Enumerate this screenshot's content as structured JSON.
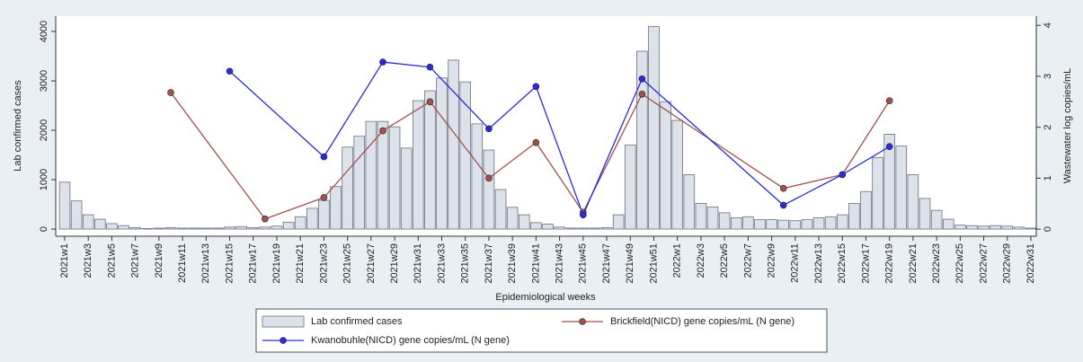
{
  "chart_data": {
    "type": "bar",
    "x_label": "Epidemiological weeks",
    "y_label": "Lab confirmed cases",
    "y2_label": "Wastewater log copies/mL",
    "categories": [
      "2021w1",
      null,
      "2021w3",
      null,
      "2021w5",
      null,
      "2021w7",
      null,
      "2021w9",
      null,
      "2021w11",
      null,
      "2021w13",
      null,
      "2021w15",
      null,
      "2021w17",
      null,
      "2021w19",
      null,
      "2021w21",
      null,
      "2021w23",
      null,
      "2021w25",
      null,
      "2021w27",
      null,
      "2021w29",
      null,
      "2021w31",
      null,
      "2021w33",
      null,
      "2021w35",
      null,
      "2021w37",
      null,
      "2021w39",
      null,
      "2021w41",
      null,
      "2021w43",
      null,
      "2021w45",
      null,
      "2021w47",
      null,
      "2021w49",
      null,
      "2021w51",
      null,
      "2022w1",
      null,
      "2022w3",
      null,
      "2022w5",
      null,
      "2022w7",
      null,
      "2022w9",
      null,
      "2022w11",
      null,
      "2022w13",
      null,
      "2022w15",
      null,
      "2022w17",
      null,
      "2022w19",
      null,
      "2022w21",
      null,
      "2022w23",
      null,
      "2022w25",
      null,
      "2022w27",
      null,
      "2022w29",
      null,
      "2022w31"
    ],
    "series": [
      {
        "name": "Lab confirmed cases",
        "type": "bar",
        "color": "#dce1ea",
        "values": [
          950,
          570,
          290,
          200,
          110,
          70,
          30,
          10,
          20,
          30,
          20,
          20,
          20,
          20,
          40,
          50,
          30,
          40,
          60,
          140,
          250,
          420,
          580,
          860,
          1660,
          1880,
          2180,
          2180,
          2070,
          1640,
          2600,
          2800,
          3060,
          3420,
          2980,
          2130,
          1600,
          800,
          440,
          290,
          130,
          100,
          40,
          20,
          20,
          20,
          30,
          290,
          1700,
          3600,
          4100,
          2580,
          2200,
          1100,
          520,
          450,
          330,
          230,
          250,
          190,
          190,
          180,
          170,
          190,
          230,
          250,
          290,
          520,
          760,
          1450,
          1920,
          1680,
          1100,
          620,
          380,
          200,
          80,
          70,
          60,
          70,
          60,
          40,
          20
        ]
      },
      {
        "name": "Brickfield(NICD) gene copies/mL (N gene)",
        "type": "line",
        "axis": "y2",
        "color": "#a0524f",
        "values": [
          null,
          null,
          null,
          null,
          null,
          null,
          null,
          null,
          null,
          2.68,
          null,
          null,
          null,
          null,
          null,
          null,
          null,
          0.2,
          null,
          null,
          null,
          null,
          0.62,
          null,
          null,
          null,
          null,
          1.93,
          null,
          null,
          null,
          2.5,
          null,
          null,
          null,
          null,
          1.0,
          null,
          null,
          null,
          1.7,
          null,
          null,
          null,
          0.33,
          null,
          null,
          null,
          null,
          2.65,
          null,
          null,
          null,
          null,
          null,
          null,
          null,
          null,
          null,
          null,
          null,
          0.8,
          null,
          null,
          null,
          null,
          1.07,
          null,
          null,
          null,
          2.52,
          null,
          null,
          null,
          null,
          null,
          null,
          null,
          null,
          null,
          null,
          null,
          null
        ]
      },
      {
        "name": "Kwanobuhle(NICD) gene copies/mL (N gene)",
        "type": "line",
        "axis": "y2",
        "color": "#2b2bd9",
        "values": [
          null,
          null,
          null,
          null,
          null,
          null,
          null,
          null,
          null,
          null,
          null,
          null,
          null,
          null,
          3.1,
          null,
          null,
          null,
          null,
          null,
          null,
          null,
          1.42,
          null,
          null,
          null,
          null,
          3.28,
          null,
          null,
          null,
          3.18,
          null,
          null,
          null,
          null,
          1.97,
          null,
          null,
          null,
          2.8,
          null,
          null,
          null,
          0.28,
          null,
          null,
          null,
          null,
          2.95,
          null,
          null,
          null,
          null,
          null,
          null,
          null,
          null,
          null,
          null,
          null,
          0.47,
          null,
          null,
          null,
          null,
          1.07,
          null,
          null,
          null,
          1.62,
          null,
          null,
          null,
          null,
          null,
          null,
          null,
          null,
          null,
          null,
          null,
          null
        ]
      }
    ],
    "ylim": [
      -145,
      4310
    ],
    "yticks": [
      0,
      1000,
      2000,
      3000,
      4000
    ],
    "y2lim": [
      -0.14,
      4.18
    ],
    "y2ticks": [
      0,
      1,
      2,
      3,
      4
    ]
  }
}
